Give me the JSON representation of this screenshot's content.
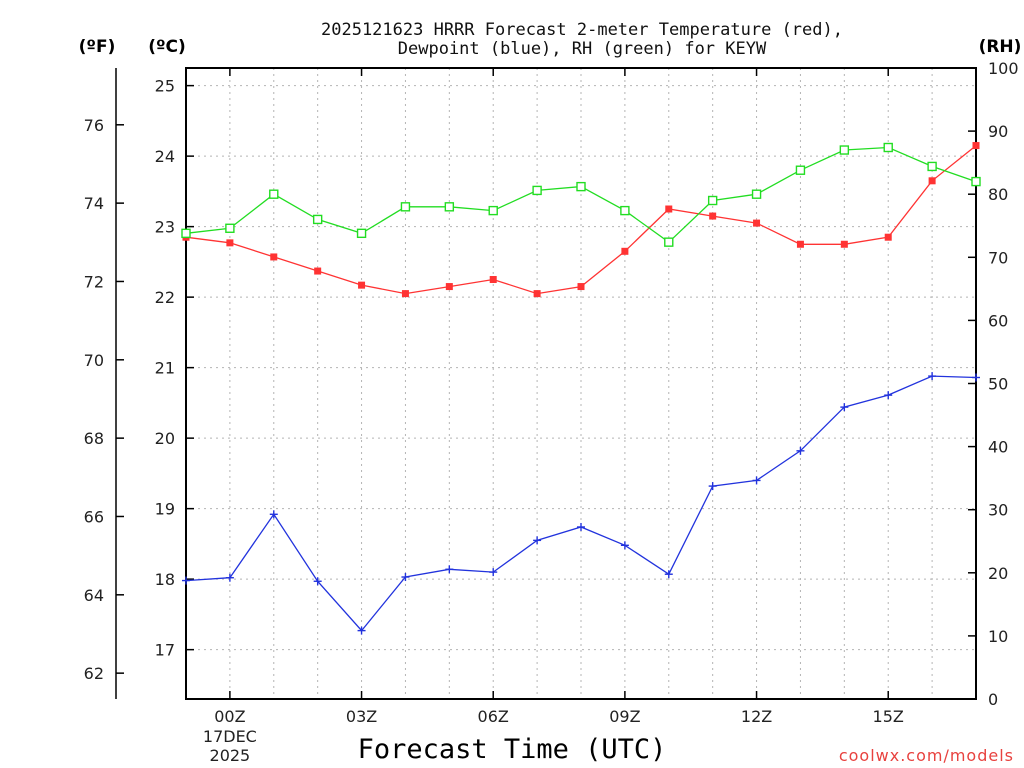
{
  "chart_data": {
    "type": "line",
    "title_line1": "2025121623 HRRR Forecast 2-meter Temperature (red),",
    "title_line2": "Dewpoint (blue), RH (green) for KEYW",
    "xlabel": "Forecast Time (UTC)",
    "credit": "coolwx.com/models",
    "units": {
      "fahrenheit": "(ºF)",
      "celsius": "(ºC)",
      "rh": "(RH)"
    },
    "x_range_hours": [
      -1,
      17
    ],
    "y_range_celsius": [
      16.3,
      25.25
    ],
    "y_range_rh": [
      0,
      100
    ],
    "x_ticks": [
      {
        "hour": 0,
        "label": "00Z",
        "sub1": "17DEC",
        "sub2": "2025"
      },
      {
        "hour": 3,
        "label": "03Z",
        "sub1": "",
        "sub2": ""
      },
      {
        "hour": 6,
        "label": "06Z",
        "sub1": "",
        "sub2": ""
      },
      {
        "hour": 9,
        "label": "09Z",
        "sub1": "",
        "sub2": ""
      },
      {
        "hour": 12,
        "label": "12Z",
        "sub1": "",
        "sub2": ""
      },
      {
        "hour": 15,
        "label": "15Z",
        "sub1": "",
        "sub2": ""
      }
    ],
    "celsius_ticks": [
      {
        "v": 17,
        "label": "17"
      },
      {
        "v": 18,
        "label": "18"
      },
      {
        "v": 19,
        "label": "19"
      },
      {
        "v": 20,
        "label": "20"
      },
      {
        "v": 21,
        "label": "21"
      },
      {
        "v": 22,
        "label": "22"
      },
      {
        "v": 23,
        "label": "23"
      },
      {
        "v": 24,
        "label": "24"
      },
      {
        "v": 25,
        "label": "25"
      }
    ],
    "fahrenheit_ticks": [
      {
        "v": 62,
        "label": "62"
      },
      {
        "v": 64,
        "label": "64"
      },
      {
        "v": 66,
        "label": "66"
      },
      {
        "v": 68,
        "label": "68"
      },
      {
        "v": 70,
        "label": "70"
      },
      {
        "v": 72,
        "label": "72"
      },
      {
        "v": 74,
        "label": "74"
      },
      {
        "v": 76,
        "label": "76"
      }
    ],
    "rh_ticks": [
      {
        "v": 0,
        "label": "0"
      },
      {
        "v": 10,
        "label": "10"
      },
      {
        "v": 20,
        "label": "20"
      },
      {
        "v": 30,
        "label": "30"
      },
      {
        "v": 40,
        "label": "40"
      },
      {
        "v": 50,
        "label": "50"
      },
      {
        "v": 60,
        "label": "60"
      },
      {
        "v": 70,
        "label": "70"
      },
      {
        "v": 80,
        "label": "80"
      },
      {
        "v": 90,
        "label": "90"
      },
      {
        "v": 100,
        "label": "100"
      }
    ],
    "series": [
      {
        "name": "Temperature (°C)",
        "color": "#ff3333",
        "marker": "filled-square",
        "axis": "celsius",
        "x": [
          -1,
          0,
          1,
          2,
          3,
          4,
          5,
          6,
          7,
          8,
          9,
          10,
          11,
          12,
          13,
          14,
          15,
          16,
          17
        ],
        "values": [
          22.85,
          22.77,
          22.57,
          22.37,
          22.17,
          22.05,
          22.15,
          22.25,
          22.05,
          22.15,
          22.65,
          23.25,
          23.15,
          23.05,
          22.75,
          22.75,
          22.85,
          23.65,
          24.15
        ]
      },
      {
        "name": "Dewpoint (°C)",
        "color": "#2233dd",
        "marker": "plus",
        "axis": "celsius",
        "x": [
          -1,
          0,
          1,
          2,
          3,
          4,
          5,
          6,
          7,
          8,
          9,
          10,
          11,
          12,
          13,
          14,
          15,
          16,
          17
        ],
        "values": [
          17.98,
          18.02,
          18.92,
          17.97,
          17.27,
          18.03,
          18.14,
          18.1,
          18.55,
          18.74,
          18.48,
          18.07,
          19.32,
          19.4,
          19.82,
          20.44,
          20.61,
          20.88,
          20.86
        ]
      },
      {
        "name": "RH (%)",
        "color": "#22dd22",
        "marker": "open-square",
        "axis": "rh",
        "x": [
          -1,
          0,
          1,
          2,
          3,
          4,
          5,
          6,
          7,
          8,
          9,
          10,
          11,
          12,
          13,
          14,
          15,
          16,
          17
        ],
        "values": [
          73.8,
          74.6,
          80.0,
          76.0,
          73.8,
          78.0,
          78.0,
          77.4,
          80.6,
          81.2,
          77.4,
          72.4,
          79.0,
          80.0,
          83.8,
          87.0,
          87.4,
          84.4,
          82.0
        ]
      }
    ]
  }
}
